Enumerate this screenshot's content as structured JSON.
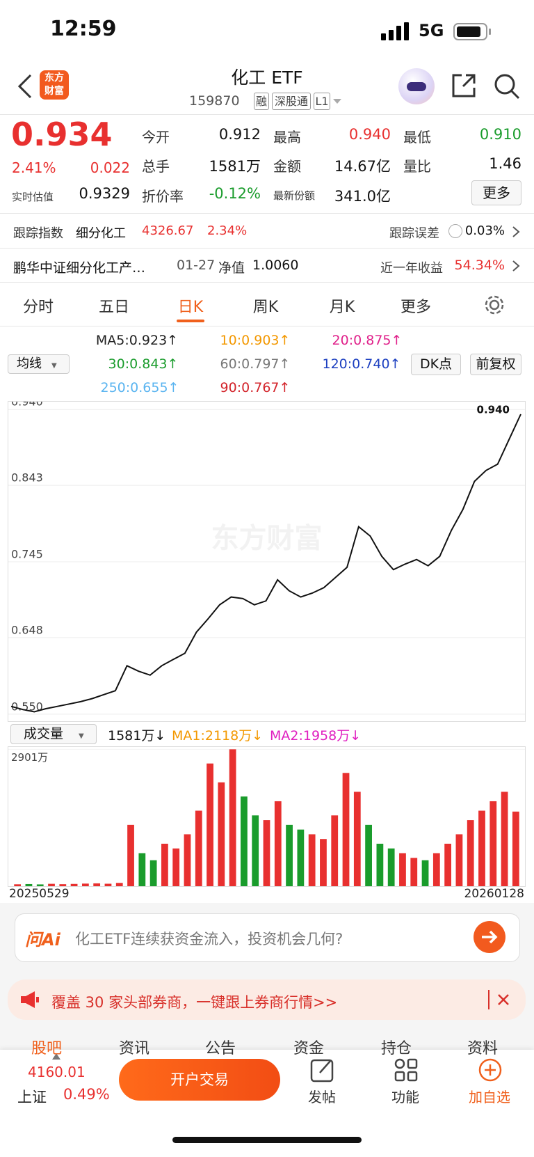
{
  "status_bar": {
    "time": "12:59",
    "network": "5G"
  },
  "header": {
    "logo": "东方财富",
    "title": "化工 ETF",
    "code": "159870",
    "tags": [
      "融",
      "深股通",
      "L1"
    ]
  },
  "quote": {
    "price": "0.934",
    "change_pct": "2.41%",
    "change": "0.022",
    "estimate_label": "实时估值",
    "estimate": "0.9329",
    "stats": [
      [
        "今开",
        "0.912"
      ],
      [
        "最高",
        "0.940"
      ],
      [
        "最低",
        "0.910"
      ],
      [
        "总手",
        "1581万"
      ],
      [
        "金额",
        "14.67亿"
      ],
      [
        "量比",
        "1.46"
      ],
      [
        "折价率",
        "-0.12%"
      ],
      [
        "最新份额",
        "341.0亿"
      ]
    ],
    "more": "更多"
  },
  "tracking": {
    "label": "跟踪指数",
    "index": "细分化工",
    "value": "4326.67",
    "pct": "2.34%",
    "error_label": "跟踪误差",
    "error": "0.03%"
  },
  "fund": {
    "name": "鹏华中证细分化工产…",
    "date": "01-27",
    "nav_label": "净值",
    "nav": "1.0060",
    "return_label": "近一年收益",
    "return": "54.34%"
  },
  "tabs": [
    "分时",
    "五日",
    "日K",
    "周K",
    "月K",
    "更多"
  ],
  "active_tab": 2,
  "ma_legend": {
    "selector": "均线",
    "items": [
      {
        "label": "MA5:0.923↑",
        "color": "#222222"
      },
      {
        "label": "10:0.903↑",
        "color": "#f39800"
      },
      {
        "label": "20:0.875↑",
        "color": "#e0208a"
      },
      {
        "label": "30:0.843↑",
        "color": "#1a9c2c"
      },
      {
        "label": "60:0.797↑",
        "color": "#777777"
      },
      {
        "label": "120:0.740↑",
        "color": "#1c3fc0"
      },
      {
        "label": "250:0.655↑",
        "color": "#5ab4f0"
      },
      {
        "label": "90:0.767↑",
        "color": "#d3242b"
      }
    ],
    "buttons": [
      "DK点",
      "前复权"
    ]
  },
  "k_chart": {
    "type": "line",
    "watermark": "东方财富",
    "high_label": "0.940",
    "ylim": [
      0.541,
      0.95
    ],
    "yticks": [
      {
        "value": 0.94,
        "label": "0.940"
      },
      0.843,
      0.745,
      0.648,
      {
        "value": 0.55,
        "label": "0.550"
      }
    ],
    "grid": true,
    "series": [
      {
        "color": "#111111",
        "values": [
          0.56,
          0.556,
          0.553,
          0.557,
          0.56,
          0.563,
          0.566,
          0.57,
          0.575,
          0.58,
          0.612,
          0.605,
          0.6,
          0.612,
          0.62,
          0.628,
          0.655,
          0.672,
          0.69,
          0.7,
          0.698,
          0.69,
          0.695,
          0.722,
          0.708,
          0.7,
          0.705,
          0.712,
          0.725,
          0.738,
          0.79,
          0.778,
          0.752,
          0.735,
          0.742,
          0.748,
          0.74,
          0.752,
          0.785,
          0.812,
          0.848,
          0.862,
          0.87,
          0.902,
          0.934
        ]
      }
    ]
  },
  "volume": {
    "selector": "成交量",
    "current": "1581万↓",
    "ma1": "MA1:2118万↓",
    "ma2": "MA2:1958万↓",
    "chart": {
      "type": "bar",
      "ylim": [
        0,
        2950
      ],
      "yticks": [
        {
          "value": 2901,
          "label": "2901万"
        }
      ],
      "up_color": "#e8302f",
      "down_color": "#1a9c2c",
      "values": [
        40,
        45,
        38,
        50,
        42,
        48,
        55,
        60,
        52,
        70,
        1300,
        700,
        550,
        900,
        800,
        1100,
        1600,
        2600,
        2200,
        2901,
        1900,
        1500,
        1400,
        1800,
        1300,
        1200,
        1100,
        1000,
        1500,
        2400,
        2000,
        1300,
        900,
        800,
        700,
        600,
        550,
        700,
        900,
        1100,
        1400,
        1600,
        1800,
        2000,
        1581
      ]
    }
  },
  "dates": [
    "20250529",
    "20260128"
  ],
  "ai_banner": {
    "logo": "问Ai",
    "text": "化工ETF连续获资金流入，投资机会几何?"
  },
  "promo": {
    "text": "覆盖 30 家头部券商，一键跟上券商行情>>"
  },
  "section_tabs": [
    "股吧",
    "资讯",
    "公告",
    "资金",
    "持仓",
    "资料"
  ],
  "bottom_bar": {
    "index_value": "4160.01",
    "index_name": "上证",
    "index_pct": "0.49%",
    "trade": "开户交易",
    "actions": [
      "发帖",
      "功能",
      "加自选"
    ]
  }
}
